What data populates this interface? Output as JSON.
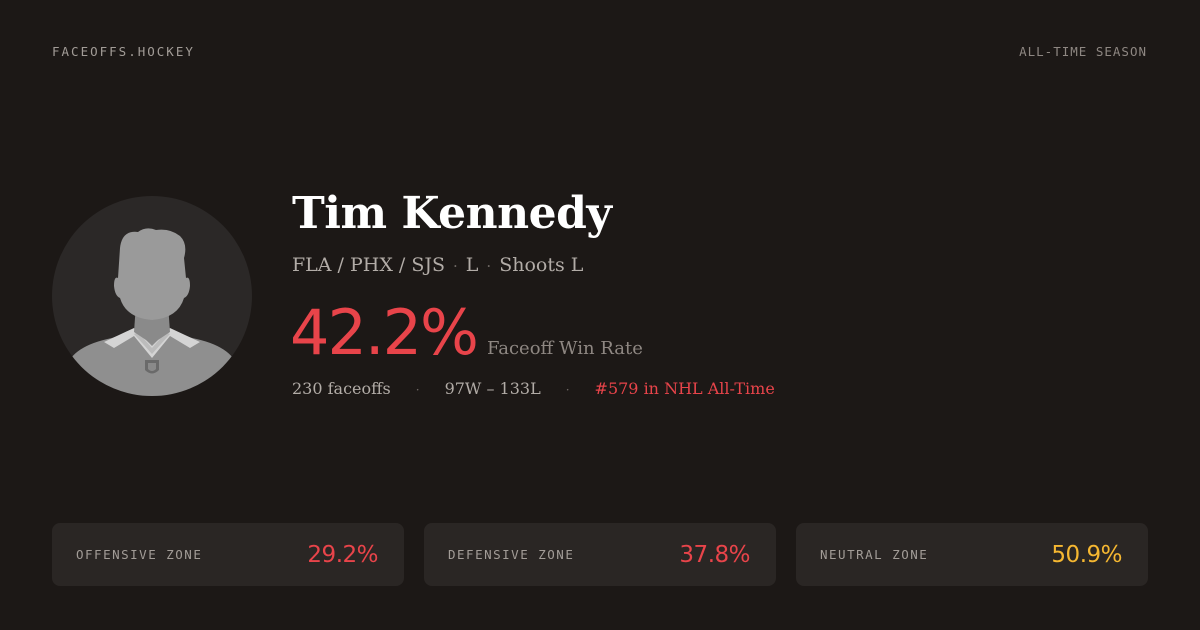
{
  "header": {
    "brand": "FACEOFFS.HOCKEY",
    "season": "ALL-TIME SEASON"
  },
  "player": {
    "avatar_icon": "player-silhouette-icon",
    "name": "Tim Kennedy",
    "teams": "FLA / PHX / SJS",
    "position": "L",
    "shoots": "Shoots L",
    "faceoff_win_rate": "42.2%",
    "faceoff_win_rate_label": "Faceoff Win Rate",
    "faceoffs": "230 faceoffs",
    "record": "97W – 133L",
    "rank": "#579 in NHL All-Time"
  },
  "zones": [
    {
      "label": "OFFENSIVE ZONE",
      "value": "29.2%",
      "color": "#e8444a"
    },
    {
      "label": "DEFENSIVE ZONE",
      "value": "37.8%",
      "color": "#e8444a"
    },
    {
      "label": "NEUTRAL ZONE",
      "value": "50.9%",
      "color": "#f5b731"
    }
  ],
  "colors": {
    "background": "#1c1816",
    "card": "#2a2624",
    "accent_red": "#e8444a",
    "accent_yellow": "#f5b731"
  }
}
